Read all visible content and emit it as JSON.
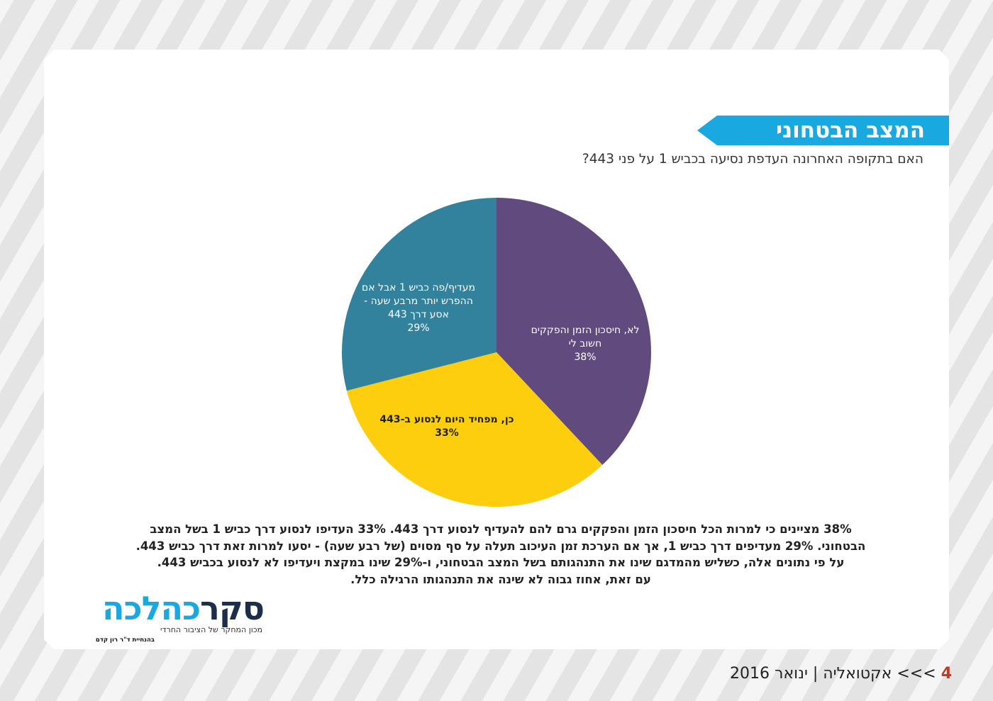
{
  "header": {
    "banner_title": "המצב הבטחוני",
    "question": "האם בתקופה האחרונה העדפת נסיעה בכביש 1 על פני 443?"
  },
  "chart_data": {
    "type": "pie",
    "slices": [
      {
        "label": "לא, חיסכון הזמן והפקקים חשוב לי",
        "label_lines": [
          "לא, חיסכון הזמן והפקקים",
          "חשוב לי"
        ],
        "value": 38,
        "value_label": "38%",
        "color": "#614a7e"
      },
      {
        "label": "כן, מפחיד היום לנסוע ב-443",
        "label_lines": [
          "כן, מפחיד היום לנסוע ב-443"
        ],
        "value": 33,
        "value_label": "33%",
        "color": "#fcce0d"
      },
      {
        "label": "מעדיף/פה כביש 1 אבל אם ההפרש יותר מרבע שעה - אסע דרך 443",
        "label_lines": [
          "מעדיף/פה כביש 1 אבל אם",
          "ההפרש יותר מרבע שעה -",
          "אסע דרך 443"
        ],
        "value": 29,
        "value_label": "29%",
        "color": "#32829e"
      }
    ]
  },
  "body_text": [
    "38% מציינים כי למרות הכל חיסכון הזמן והפקקים גרם להם להעדיף לנסוע דרך 443. 33% העדיפו לנסוע דרך כביש 1 בשל המצב",
    "הבטחוני. 29% מעדיפים דרך כביש 1, אך אם הערכת זמן העיכוב תעלה על סף מסוים (של רבע שעה) - יסעו למרות זאת דרך כביש 443.",
    "על פי נתונים אלה, כשליש מהמדגם שינו את התנהגותם בשל המצב הבטחוני, ו-29% שינו במקצת ויעדיפו לא לנסוע בכביש 443.",
    "עם זאת, אחוז גבוה לא שינה את התנהגותו הרגילה כלל."
  ],
  "logo": {
    "word_dark": "סקר",
    "word_blue": "כהלכה",
    "subtitle": "מכון המחקר של הציבור החרדי",
    "credit": "בהנחיית ד\"ר רון קדם",
    "dark_color": "#1c2e4a",
    "blue_color": "#1aa8e0"
  },
  "footer": {
    "page_number": "4",
    "arrows": ">>>",
    "section": "אקטואליה",
    "separator": "|",
    "date": "ינואר 2016"
  },
  "colors": {
    "banner": "#1aa8e0",
    "page_number": "#c0392b"
  }
}
